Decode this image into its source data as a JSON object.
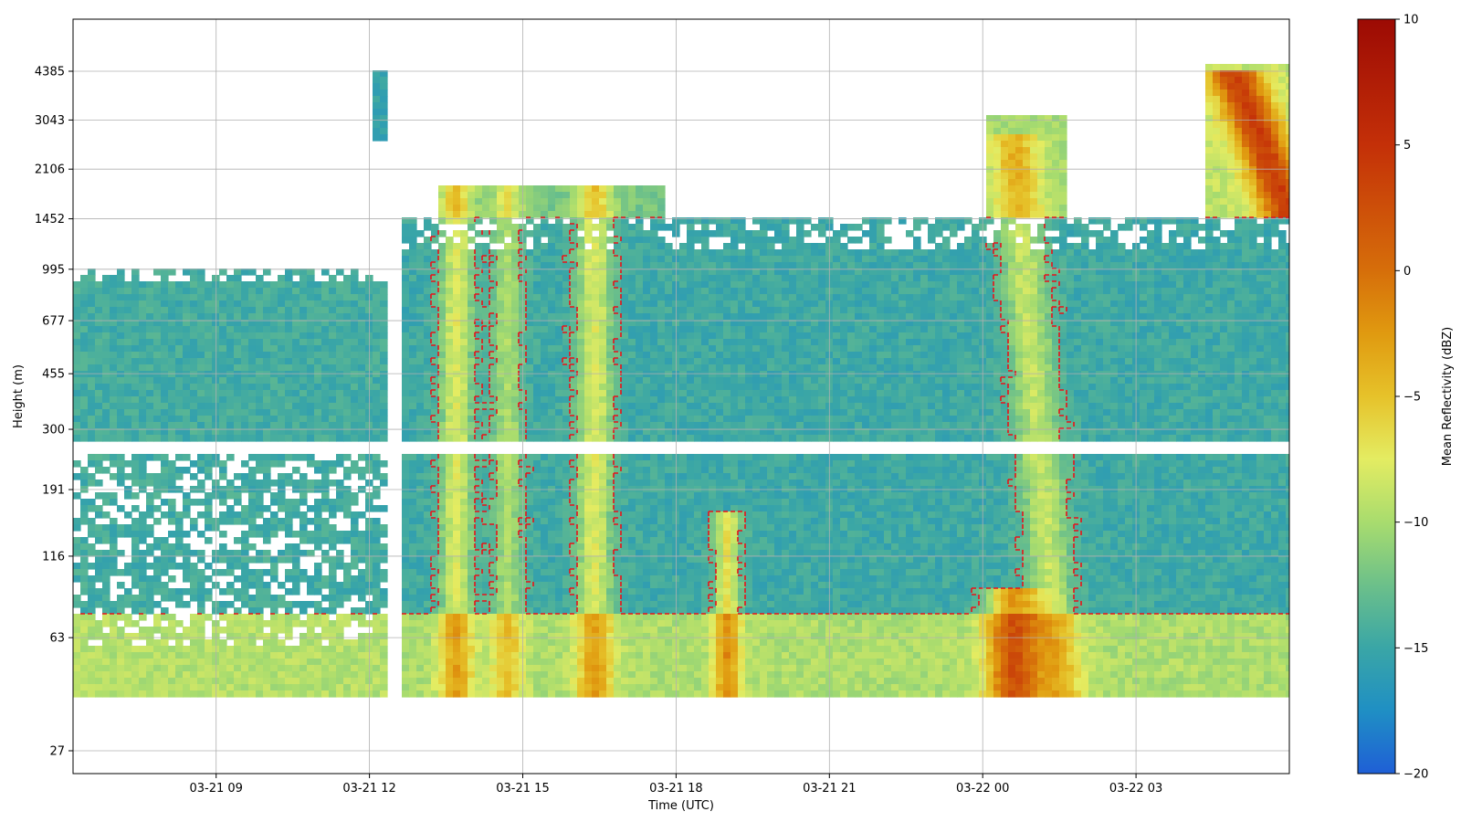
{
  "chart_data": {
    "type": "heatmap",
    "title": "",
    "xlabel": "Time (UTC)",
    "ylabel": "Height (m)",
    "x_ticks": [
      "03-21 09",
      "03-21 12",
      "03-21 15",
      "03-21 18",
      "03-21 21",
      "03-22 00",
      "03-22 03"
    ],
    "x_range_hours_since_03_21_00": [
      6.2,
      30.0
    ],
    "y_scale": "log",
    "y_ticks": [
      27,
      63,
      116,
      191,
      300,
      455,
      677,
      995,
      1452,
      2106,
      3043,
      4385
    ],
    "colorbar": {
      "label": "Mean Reflectivity (dBZ)",
      "range": [
        -20,
        10
      ],
      "ticks": [
        10,
        5,
        0,
        -5,
        -10,
        -15,
        -20
      ],
      "colormap": "jet_like",
      "stops": [
        {
          "v": -20,
          "color": "#1f5fd6"
        },
        {
          "v": -17.5,
          "color": "#1f8fc4"
        },
        {
          "v": -15,
          "color": "#3aa6a6"
        },
        {
          "v": -12.5,
          "color": "#6cc08a"
        },
        {
          "v": -10,
          "color": "#a8dc6e"
        },
        {
          "v": -7.5,
          "color": "#e4ec62"
        },
        {
          "v": -5,
          "color": "#e6c22a"
        },
        {
          "v": -2.5,
          "color": "#e09a10"
        },
        {
          "v": 0,
          "color": "#d66e0a"
        },
        {
          "v": 5,
          "color": "#c43008"
        },
        {
          "v": 10,
          "color": "#9c0a04"
        }
      ]
    },
    "contour": {
      "style": "dashed",
      "color": "#e8121a"
    },
    "grid": true,
    "regions": [
      {
        "t0": 6.2,
        "t1": 12.3,
        "z0": 40,
        "z1": 1000,
        "base": -14.5,
        "mode": "patchy"
      },
      {
        "t0": 12.7,
        "t1": 30.0,
        "z0": 40,
        "z1": 1450,
        "base": -14.8,
        "mode": "solid"
      },
      {
        "t0": 13.4,
        "t1": 17.8,
        "z0": 1450,
        "z1": 1860,
        "base": -12.0,
        "mode": "solid"
      },
      {
        "t0": 12.0,
        "t1": 12.3,
        "z0": 2600,
        "z1": 4400,
        "base": -15.5,
        "mode": "solid"
      },
      {
        "t0": 24.0,
        "t1": 25.6,
        "z0": 1450,
        "z1": 3100,
        "base": -10.0,
        "mode": "solid"
      },
      {
        "t0": 28.4,
        "t1": 30.0,
        "z0": 1450,
        "z1": 4600,
        "base": -9.0,
        "mode": "solid"
      }
    ],
    "features": [
      {
        "t": 13.7,
        "w": 0.32,
        "z0": 40,
        "z1": 1860,
        "amp": 7,
        "type": "vertical"
      },
      {
        "t": 14.7,
        "w": 0.3,
        "z0": 40,
        "z1": 1860,
        "amp": 5,
        "type": "vertical"
      },
      {
        "t": 16.4,
        "w": 0.35,
        "z0": 40,
        "z1": 1860,
        "amp": 7,
        "type": "vertical"
      },
      {
        "t": 19.0,
        "w": 0.25,
        "z0": 40,
        "z1": 160,
        "amp": 8,
        "type": "vertical"
      },
      {
        "t": 24.6,
        "w": 0.45,
        "z0": 40,
        "z1": 2800,
        "amp": 6,
        "type": "slant"
      },
      {
        "t": 24.6,
        "w": 0.5,
        "z0": 40,
        "z1": 90,
        "amp": 12,
        "type": "vertical"
      },
      {
        "t": 28.9,
        "w": 0.5,
        "z0": 1500,
        "z1": 4400,
        "amp": 13,
        "type": "streak"
      },
      {
        "t": 20.0,
        "w": 12.0,
        "z0": 40,
        "z1": 75,
        "amp": 5,
        "type": "layer"
      }
    ],
    "gap_band_m": [
      255,
      272
    ],
    "time_gap_hours": [
      12.3,
      12.5
    ]
  }
}
